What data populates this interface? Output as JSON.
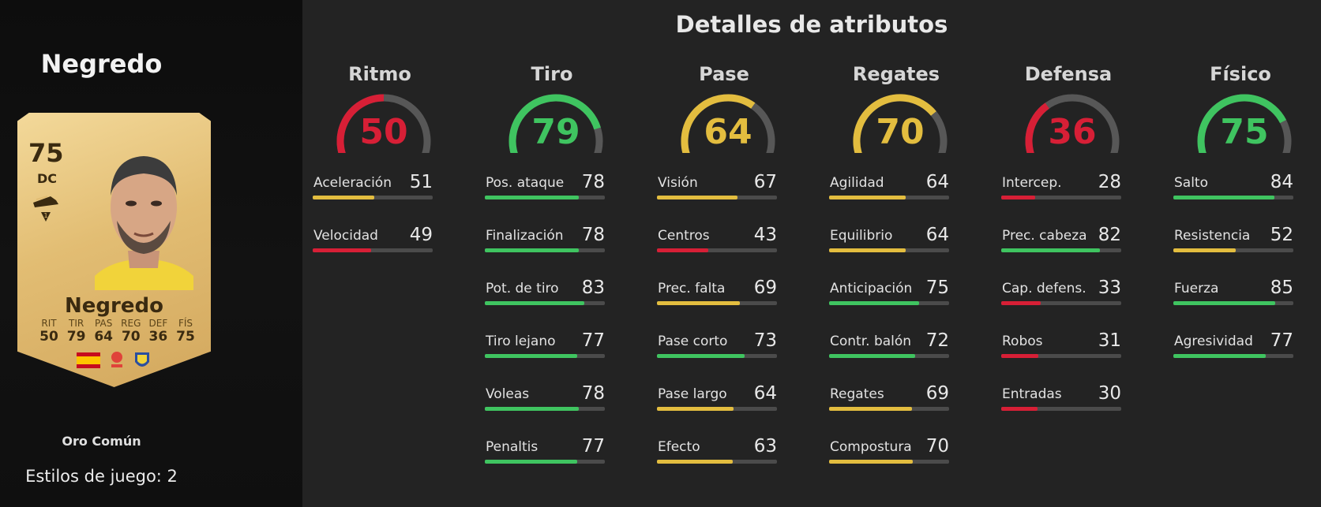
{
  "player": {
    "name": "Negredo",
    "card_name": "Negredo",
    "rating": "75",
    "position": "DC",
    "card_type": "Oro Común",
    "playstyles_label": "Estilos de juego: 2"
  },
  "card_stats": [
    {
      "label": "RIT",
      "value": "50"
    },
    {
      "label": "TIR",
      "value": "79"
    },
    {
      "label": "PAS",
      "value": "64"
    },
    {
      "label": "REG",
      "value": "70"
    },
    {
      "label": "DEF",
      "value": "36"
    },
    {
      "label": "FÍS",
      "value": "75"
    }
  ],
  "section_title": "Detalles de atributos",
  "colors": {
    "red": "#d71f36",
    "yellow": "#e3bd3f",
    "green": "#3fc460",
    "gauge_track": "#575757"
  },
  "categories": [
    {
      "name": "Ritmo",
      "value": 50,
      "color": "red",
      "attributes": [
        {
          "name": "Aceleración",
          "value": 51,
          "color": "yellow"
        },
        {
          "name": "Velocidad",
          "value": 49,
          "color": "red"
        }
      ]
    },
    {
      "name": "Tiro",
      "value": 79,
      "color": "green",
      "attributes": [
        {
          "name": "Pos. ataque",
          "value": 78,
          "color": "green"
        },
        {
          "name": "Finalización",
          "value": 78,
          "color": "green"
        },
        {
          "name": "Pot. de tiro",
          "value": 83,
          "color": "green"
        },
        {
          "name": "Tiro lejano",
          "value": 77,
          "color": "green"
        },
        {
          "name": "Voleas",
          "value": 78,
          "color": "green"
        },
        {
          "name": "Penaltis",
          "value": 77,
          "color": "green"
        }
      ]
    },
    {
      "name": "Pase",
      "value": 64,
      "color": "yellow",
      "attributes": [
        {
          "name": "Visión",
          "value": 67,
          "color": "yellow"
        },
        {
          "name": "Centros",
          "value": 43,
          "color": "red"
        },
        {
          "name": "Prec. falta",
          "value": 69,
          "color": "yellow"
        },
        {
          "name": "Pase corto",
          "value": 73,
          "color": "green"
        },
        {
          "name": "Pase largo",
          "value": 64,
          "color": "yellow"
        },
        {
          "name": "Efecto",
          "value": 63,
          "color": "yellow"
        }
      ]
    },
    {
      "name": "Regates",
      "value": 70,
      "color": "yellow",
      "attributes": [
        {
          "name": "Agilidad",
          "value": 64,
          "color": "yellow"
        },
        {
          "name": "Equilibrio",
          "value": 64,
          "color": "yellow"
        },
        {
          "name": "Anticipación",
          "value": 75,
          "color": "green"
        },
        {
          "name": "Contr. balón",
          "value": 72,
          "color": "green"
        },
        {
          "name": "Regates",
          "value": 69,
          "color": "yellow"
        },
        {
          "name": "Compostura",
          "value": 70,
          "color": "yellow"
        }
      ]
    },
    {
      "name": "Defensa",
      "value": 36,
      "color": "red",
      "attributes": [
        {
          "name": "Intercep.",
          "value": 28,
          "color": "red"
        },
        {
          "name": "Prec. cabeza",
          "value": 82,
          "color": "green"
        },
        {
          "name": "Cap. defens.",
          "value": 33,
          "color": "red"
        },
        {
          "name": "Robos",
          "value": 31,
          "color": "red"
        },
        {
          "name": "Entradas",
          "value": 30,
          "color": "red"
        }
      ]
    },
    {
      "name": "Físico",
      "value": 75,
      "color": "green",
      "attributes": [
        {
          "name": "Salto",
          "value": 84,
          "color": "green"
        },
        {
          "name": "Resistencia",
          "value": 52,
          "color": "yellow"
        },
        {
          "name": "Fuerza",
          "value": 85,
          "color": "green"
        },
        {
          "name": "Agresividad",
          "value": 77,
          "color": "green"
        }
      ]
    }
  ],
  "icons": {
    "boot": "boot-icon",
    "flag": "spain-flag-icon",
    "league": "laliga-icon",
    "club": "cadiz-crest-icon"
  }
}
